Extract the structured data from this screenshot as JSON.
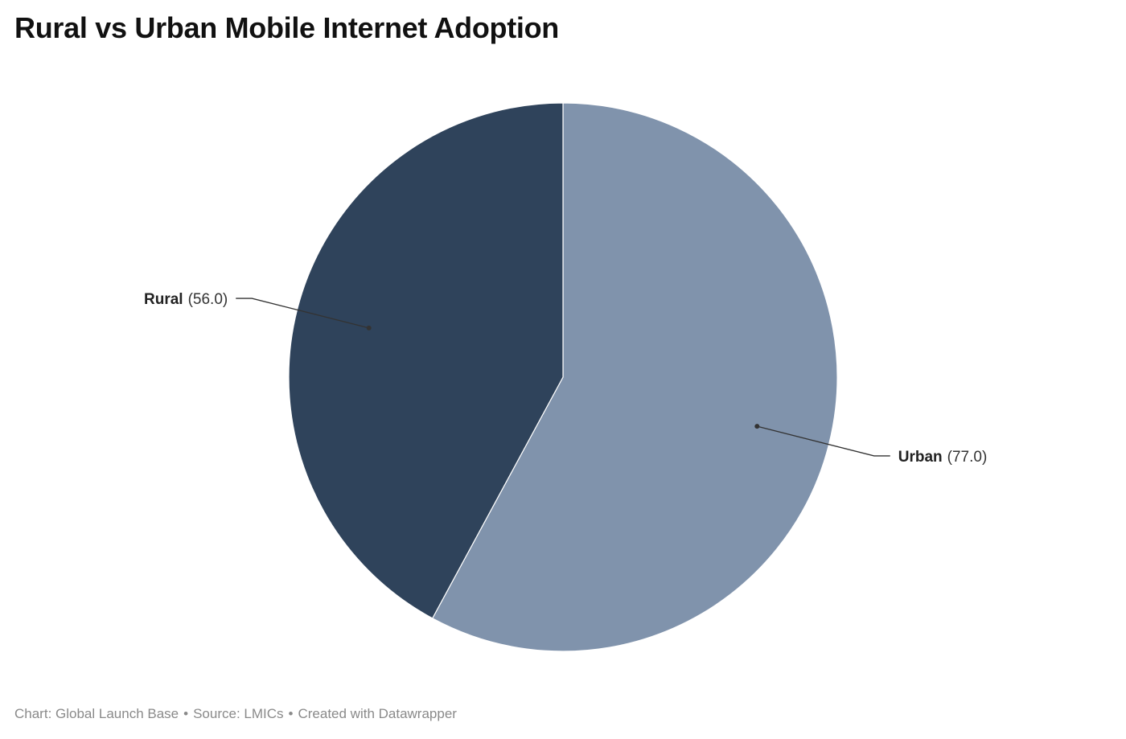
{
  "title": "Rural vs Urban Mobile Internet Adoption",
  "footer": {
    "chart_credit": "Chart: Global Launch Base",
    "source": "Source: LMICs",
    "created_with": "Created with Datawrapper",
    "separator": "•"
  },
  "colors": {
    "rural": "#2f435b",
    "urban": "#8093ac",
    "slice_border": "#ffffff",
    "leader_line": "#333333"
  },
  "chart_data": {
    "type": "pie",
    "title": "Rural vs Urban Mobile Internet Adoption",
    "slices": [
      {
        "label": "Urban",
        "value": 77.0,
        "display": "(77.0)",
        "color": "#8093ac",
        "label_side": "right"
      },
      {
        "label": "Rural",
        "value": 56.0,
        "display": "(56.0)",
        "color": "#2f435b",
        "label_side": "left"
      }
    ],
    "start_angle_deg": 0,
    "direction": "clockwise"
  }
}
